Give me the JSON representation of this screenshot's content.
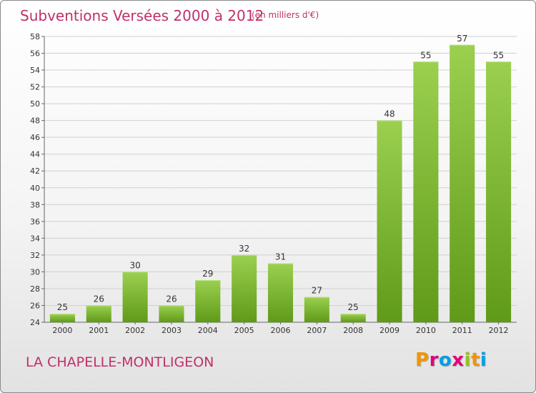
{
  "header": {
    "title": "Subventions Versées 2000 à 2012",
    "unit_note": "(en milliers d'€)"
  },
  "footer": {
    "town": "LA CHAPELLE-MONTLIGEON",
    "logo_letters": [
      "P",
      "r",
      "o",
      "x",
      "i",
      "t",
      "i"
    ]
  },
  "colors": {
    "title": "#c0306a",
    "bar_top": "#9bd04f",
    "bar_bottom": "#5f9a18",
    "grid": "#d0d0d0",
    "logo": [
      "#f29400",
      "#e2007a",
      "#009fe3",
      "#e2007a",
      "#95c11f",
      "#f29400",
      "#009fe3"
    ]
  },
  "chart_data": {
    "type": "bar",
    "title": "Subventions Versées 2000 à 2012",
    "subtitle": "(en milliers d'€)",
    "categories": [
      "2000",
      "2001",
      "2002",
      "2003",
      "2004",
      "2005",
      "2006",
      "2007",
      "2008",
      "2009",
      "2010",
      "2011",
      "2012"
    ],
    "values": [
      25,
      26,
      30,
      26,
      29,
      32,
      31,
      27,
      25,
      48,
      55,
      57,
      55
    ],
    "ylim": [
      24,
      58
    ],
    "yticks": [
      24,
      26,
      28,
      30,
      32,
      34,
      36,
      38,
      40,
      42,
      44,
      46,
      48,
      50,
      52,
      54,
      56,
      58
    ],
    "grid": true,
    "legend": "none"
  }
}
